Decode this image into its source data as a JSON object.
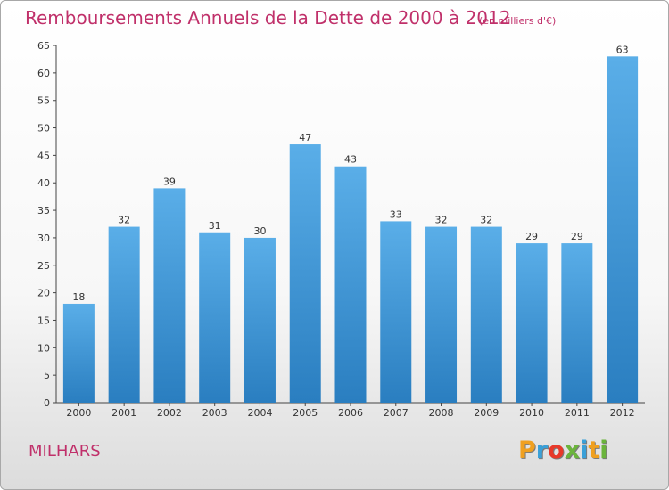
{
  "header": {
    "title": "Remboursements Annuels de la Dette de 2000 à 2012",
    "unit": "(en milliers d'€)"
  },
  "footer": {
    "place": "MILHARS",
    "logo": {
      "letters": [
        "P",
        "r",
        "o",
        "x",
        "i",
        "t",
        "i"
      ],
      "colors": [
        "#f0a020",
        "#3aa0d8",
        "#e8392a",
        "#6bb43c",
        "#3aa0d8",
        "#f0a020",
        "#6bb43c"
      ]
    }
  },
  "colors": {
    "bar_light": "#5aaee8",
    "bar_dark": "#2a7ec0",
    "accent": "#c0306a"
  },
  "chart_data": {
    "type": "bar",
    "categories": [
      "2000",
      "2001",
      "2002",
      "2003",
      "2004",
      "2005",
      "2006",
      "2007",
      "2008",
      "2009",
      "2010",
      "2011",
      "2012"
    ],
    "values": [
      18,
      32,
      39,
      31,
      30,
      47,
      43,
      33,
      32,
      32,
      29,
      29,
      63
    ],
    "title": "Remboursements Annuels de la Dette de 2000 à 2012",
    "ylim": [
      0,
      65
    ],
    "yticks": [
      0,
      5,
      10,
      15,
      20,
      25,
      30,
      35,
      40,
      45,
      50,
      55,
      60,
      65
    ],
    "grid": false,
    "legend": "none"
  }
}
